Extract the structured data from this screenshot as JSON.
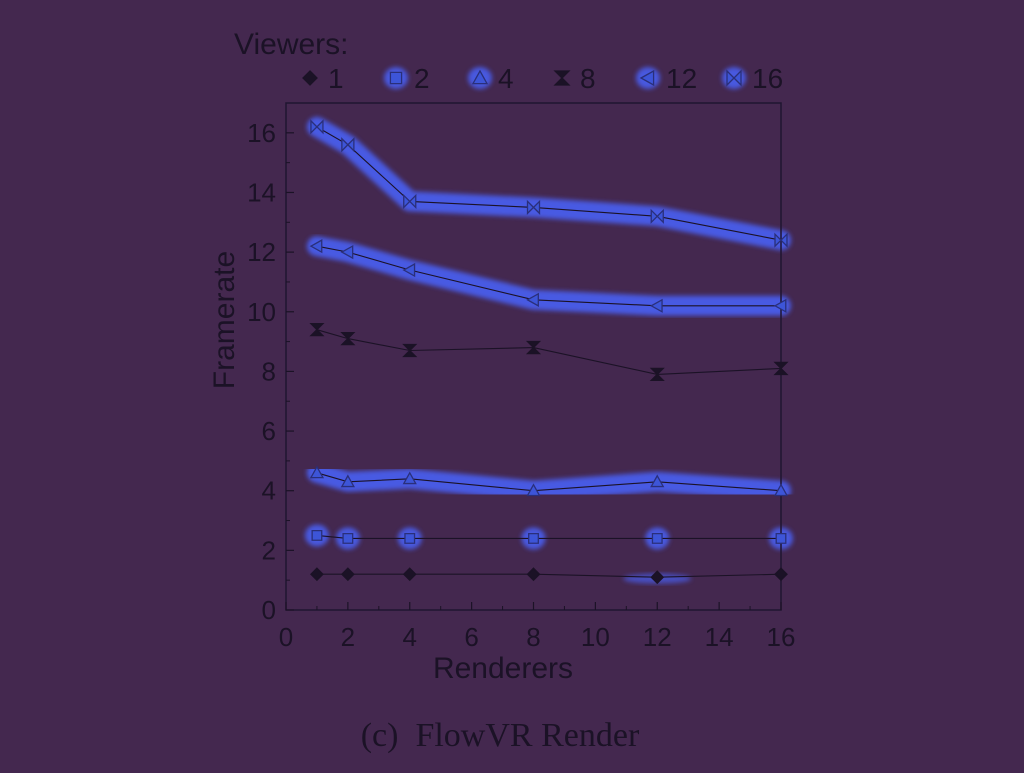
{
  "colors": {
    "background": "#44284f",
    "ink": "#1b1226",
    "highlight": "#4a5ff0",
    "frame": "#1f1530"
  },
  "chart_data": {
    "type": "line",
    "caption": "(c)  FlowVR Render",
    "xlabel": "Renderers",
    "ylabel": "Framerate",
    "xlim": [
      0,
      16
    ],
    "ylim": [
      0,
      17
    ],
    "xticks": [
      0,
      2,
      4,
      6,
      8,
      10,
      12,
      14,
      16
    ],
    "yticks": [
      0,
      2,
      4,
      6,
      8,
      10,
      12,
      14,
      16
    ],
    "grid": false,
    "legend": {
      "title": "Viewers:",
      "placement": "top"
    },
    "x": [
      1,
      2,
      4,
      8,
      12,
      16
    ],
    "series": [
      {
        "name": "1",
        "marker": "diamond",
        "values": [
          1.2,
          1.2,
          1.2,
          1.2,
          1.1,
          1.2
        ]
      },
      {
        "name": "2",
        "marker": "square",
        "values": [
          2.5,
          2.4,
          2.4,
          2.4,
          2.4,
          2.4
        ]
      },
      {
        "name": "4",
        "marker": "triangle",
        "values": [
          4.6,
          4.3,
          4.4,
          4.0,
          4.3,
          4.0
        ]
      },
      {
        "name": "8",
        "marker": "hourglass",
        "values": [
          9.4,
          9.1,
          8.7,
          8.8,
          7.9,
          8.1
        ]
      },
      {
        "name": "12",
        "marker": "tri-left",
        "values": [
          12.2,
          12.0,
          11.4,
          10.4,
          10.2,
          10.2
        ]
      },
      {
        "name": "16",
        "marker": "bowtie",
        "values": [
          16.2,
          15.6,
          13.7,
          13.5,
          13.2,
          12.4
        ]
      }
    ]
  }
}
